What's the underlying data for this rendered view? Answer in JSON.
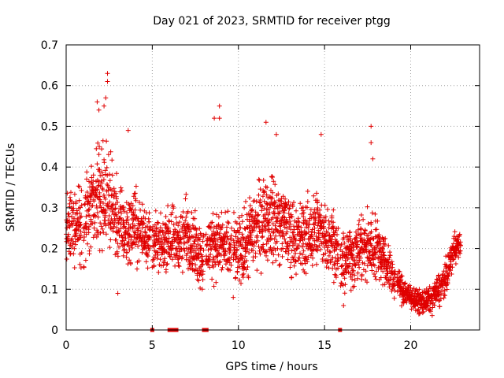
{
  "chart_data": {
    "type": "scatter",
    "title": "Day 021 of 2023, SRMTID for receiver ptgg",
    "xlabel": "GPS time / hours",
    "ylabel": "SRMTID / TECUs",
    "xlim": [
      0,
      24
    ],
    "ylim": [
      0,
      0.7
    ],
    "xticks": [
      0,
      5,
      10,
      15,
      20
    ],
    "yticks": [
      0,
      0.1,
      0.2,
      0.3,
      0.4,
      0.5,
      0.6,
      0.7
    ],
    "xtick_labels": [
      "0",
      "5",
      "10",
      "15",
      "20"
    ],
    "ytick_labels": [
      "0",
      "0.1",
      "0.2",
      "0.3",
      "0.4",
      "0.5",
      "0.6",
      "0.7"
    ],
    "grid": true,
    "marker": "+",
    "color": "#e00000",
    "envelope": {
      "description": "approximate mean level and spread of the dense point cloud",
      "x": [
        0.0,
        0.5,
        1.0,
        1.5,
        2.0,
        2.5,
        3.0,
        3.5,
        4.0,
        4.5,
        5.0,
        5.5,
        6.0,
        6.5,
        7.0,
        7.5,
        8.0,
        8.5,
        9.0,
        9.5,
        10.0,
        10.5,
        11.0,
        11.5,
        12.0,
        12.5,
        13.0,
        13.5,
        14.0,
        14.5,
        15.0,
        15.5,
        16.0,
        16.5,
        17.0,
        17.5,
        18.0,
        18.5,
        19.0,
        19.5,
        20.0,
        20.5,
        21.0,
        21.5,
        22.0,
        22.5,
        22.9
      ],
      "mean": [
        0.24,
        0.26,
        0.27,
        0.29,
        0.33,
        0.32,
        0.26,
        0.24,
        0.26,
        0.24,
        0.22,
        0.21,
        0.23,
        0.22,
        0.24,
        0.2,
        0.18,
        0.22,
        0.21,
        0.2,
        0.19,
        0.21,
        0.25,
        0.28,
        0.27,
        0.26,
        0.24,
        0.22,
        0.23,
        0.25,
        0.24,
        0.22,
        0.16,
        0.18,
        0.2,
        0.2,
        0.21,
        0.17,
        0.13,
        0.1,
        0.08,
        0.07,
        0.07,
        0.09,
        0.12,
        0.2,
        0.21
      ],
      "spread": [
        0.09,
        0.09,
        0.11,
        0.12,
        0.13,
        0.12,
        0.1,
        0.09,
        0.09,
        0.08,
        0.07,
        0.07,
        0.08,
        0.08,
        0.09,
        0.08,
        0.08,
        0.09,
        0.09,
        0.08,
        0.08,
        0.1,
        0.1,
        0.11,
        0.11,
        0.1,
        0.1,
        0.09,
        0.1,
        0.1,
        0.09,
        0.09,
        0.07,
        0.08,
        0.09,
        0.1,
        0.09,
        0.07,
        0.05,
        0.04,
        0.03,
        0.03,
        0.03,
        0.04,
        0.05,
        0.04,
        0.03
      ]
    },
    "data_gaps": [
      [
        0.9,
        1.0
      ],
      [
        4.9,
        5.0
      ],
      [
        8.0,
        8.1
      ],
      [
        9.6,
        9.7
      ],
      [
        15.8,
        15.9
      ],
      [
        19.1,
        19.2
      ]
    ],
    "peaks": [
      {
        "x": 2.4,
        "y": 0.63
      },
      {
        "x": 2.4,
        "y": 0.61
      },
      {
        "x": 2.3,
        "y": 0.57
      },
      {
        "x": 2.2,
        "y": 0.55
      },
      {
        "x": 1.8,
        "y": 0.56
      },
      {
        "x": 1.9,
        "y": 0.54
      },
      {
        "x": 3.6,
        "y": 0.49
      },
      {
        "x": 8.9,
        "y": 0.55
      },
      {
        "x": 8.9,
        "y": 0.52
      },
      {
        "x": 8.6,
        "y": 0.52
      },
      {
        "x": 11.6,
        "y": 0.51
      },
      {
        "x": 12.2,
        "y": 0.48
      },
      {
        "x": 14.8,
        "y": 0.48
      },
      {
        "x": 17.7,
        "y": 0.5
      },
      {
        "x": 17.7,
        "y": 0.46
      },
      {
        "x": 17.8,
        "y": 0.42
      },
      {
        "x": 3.0,
        "y": 0.09
      },
      {
        "x": 7.9,
        "y": 0.1
      },
      {
        "x": 9.7,
        "y": 0.08
      },
      {
        "x": 16.1,
        "y": 0.06
      }
    ],
    "zero_points_x": [
      5.0,
      6.0,
      6.2,
      6.4,
      8.0,
      8.15,
      15.9
    ]
  }
}
